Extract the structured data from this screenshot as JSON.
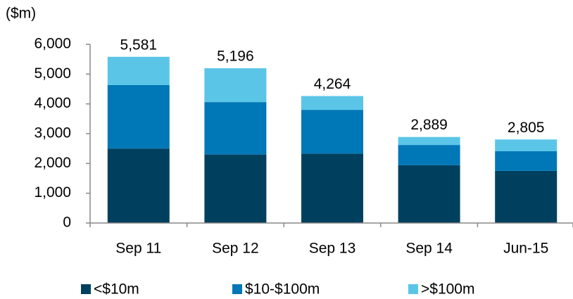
{
  "chart_data": {
    "type": "stacked_bar",
    "y_label": "($m)",
    "categories": [
      "Sep 11",
      "Sep 12",
      "Sep 13",
      "Sep 14",
      "Jun-15"
    ],
    "series": [
      {
        "name": "<$10m",
        "color": "#00405f",
        "values": [
          2500,
          2300,
          2330,
          1940,
          1750
        ]
      },
      {
        "name": "$10-$100m",
        "color": "#0077b6",
        "values": [
          2130,
          1760,
          1470,
          680,
          660
        ]
      },
      {
        "name": ">$100m",
        "color": "#5bc5e8",
        "values": [
          951,
          1136,
          464,
          269,
          395
        ]
      }
    ],
    "totals": [
      5581,
      5196,
      4264,
      2889,
      2805
    ],
    "total_labels": [
      "5,581",
      "5,196",
      "4,264",
      "2,889",
      "2,805"
    ],
    "ylim": [
      0,
      6000
    ],
    "yticks": [
      0,
      {
        "value": 1000,
        "label": "1,000"
      },
      {
        "value": 2000,
        "label": "2,000"
      },
      {
        "value": 3000,
        "label": "3,000"
      },
      {
        "value": 4000,
        "label": "4,000"
      },
      {
        "value": 5000,
        "label": "5,000"
      },
      {
        "value": 6000,
        "label": "6,000"
      }
    ],
    "legend": "bottom"
  }
}
